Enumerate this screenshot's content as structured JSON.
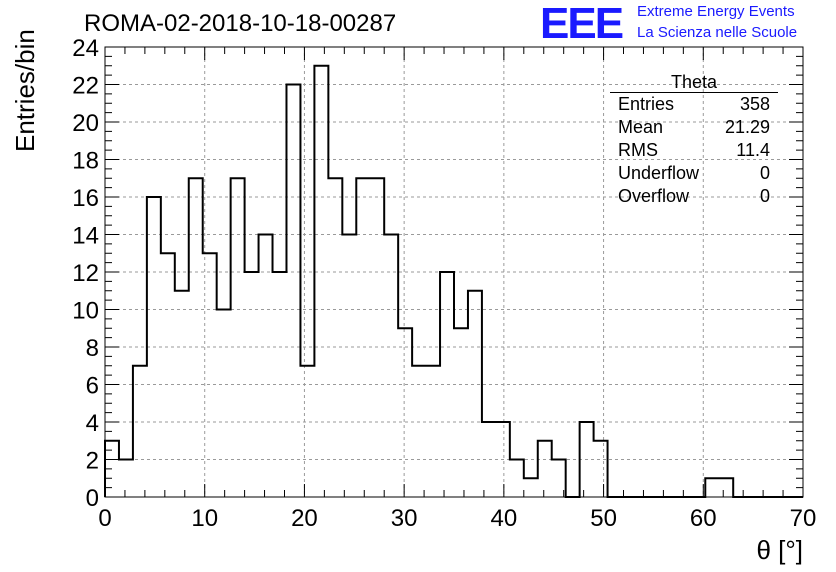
{
  "title": "ROMA-02-2018-10-18-00287",
  "logo": {
    "mark": "EEE",
    "line1": "Extreme Energy Events",
    "line2": "La Scienza nelle Scuole",
    "color": "#1a1aff"
  },
  "stats": {
    "title": "Theta",
    "rows": [
      {
        "label": "Entries",
        "value": "358"
      },
      {
        "label": "Mean",
        "value": "21.29"
      },
      {
        "label": "RMS",
        "value": "11.4"
      },
      {
        "label": "Underflow",
        "value": "0"
      },
      {
        "label": "Overflow",
        "value": "0"
      }
    ]
  },
  "chart_data": {
    "type": "bar",
    "style": "step-histogram",
    "xlabel": "θ [°]",
    "ylabel": "Entries/bin",
    "xlim": [
      0,
      70
    ],
    "ylim": [
      0,
      24
    ],
    "grid": true,
    "bin_width": 1.4,
    "bin_edges_start": 0,
    "values": [
      3,
      2,
      7,
      16,
      13,
      11,
      17,
      13,
      10,
      17,
      12,
      14,
      12,
      22,
      7,
      23,
      17,
      14,
      17,
      17,
      14,
      9,
      7,
      7,
      12,
      9,
      11,
      4,
      4,
      2,
      1,
      3,
      2,
      0,
      4,
      3,
      0,
      0,
      0,
      0,
      0,
      0,
      0,
      1,
      1,
      0,
      0,
      0,
      0,
      0
    ],
    "x_ticks": [
      "0",
      "10",
      "20",
      "30",
      "40",
      "50",
      "60",
      "70"
    ],
    "y_ticks": [
      "0",
      "2",
      "4",
      "6",
      "8",
      "10",
      "12",
      "14",
      "16",
      "18",
      "20",
      "22",
      "24"
    ],
    "line_color": "#000000"
  }
}
